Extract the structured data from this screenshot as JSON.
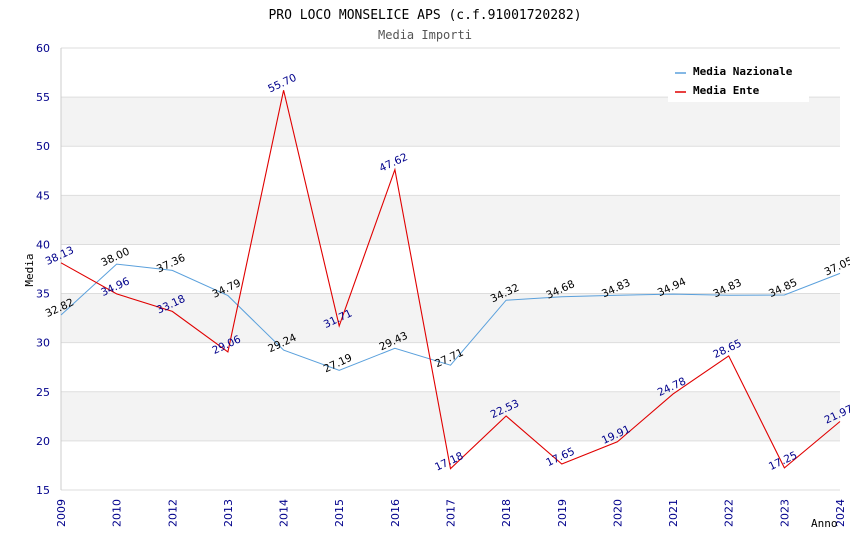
{
  "chart_data": {
    "type": "line",
    "title": "PRO LOCO MONSELICE APS (c.f.91001720282)",
    "subtitle": "Media Importi",
    "xlabel": "Anno",
    "ylabel": "Media",
    "ylim": [
      15,
      60
    ],
    "ystep": 5,
    "grid": true,
    "legend": "top-right",
    "categories": [
      "2009",
      "2010",
      "2012",
      "2013",
      "2014",
      "2015",
      "2016",
      "2017",
      "2018",
      "2019",
      "2020",
      "2021",
      "2022",
      "2023",
      "2024"
    ],
    "series": [
      {
        "name": "Media Nazionale",
        "color": "#5aa0dc",
        "values": [
          32.82,
          38.0,
          37.36,
          34.79,
          29.24,
          27.19,
          29.43,
          27.71,
          34.32,
          34.68,
          34.83,
          34.94,
          34.83,
          34.85,
          37.05
        ],
        "labels": [
          "32.82",
          "38.00",
          "37.36",
          "34.79",
          "29.24",
          "27.19",
          "29.43",
          "27.71",
          "34.32",
          "34.68",
          "34.83",
          "34.94",
          "34.83",
          "34.85",
          "37.05"
        ]
      },
      {
        "name": "Media Ente",
        "color": "#e00000",
        "values": [
          38.13,
          34.96,
          33.18,
          29.06,
          55.7,
          31.71,
          47.62,
          17.18,
          22.53,
          17.65,
          19.91,
          24.78,
          28.65,
          17.25,
          21.97
        ],
        "labels": [
          "38.13",
          "34.96",
          "33.18",
          "29.06",
          "55.70",
          "31.71",
          "47.62",
          "17.18",
          "22.53",
          "17.65",
          "19.91",
          "24.78",
          "28.65",
          "17.25",
          "21.97"
        ]
      }
    ]
  }
}
